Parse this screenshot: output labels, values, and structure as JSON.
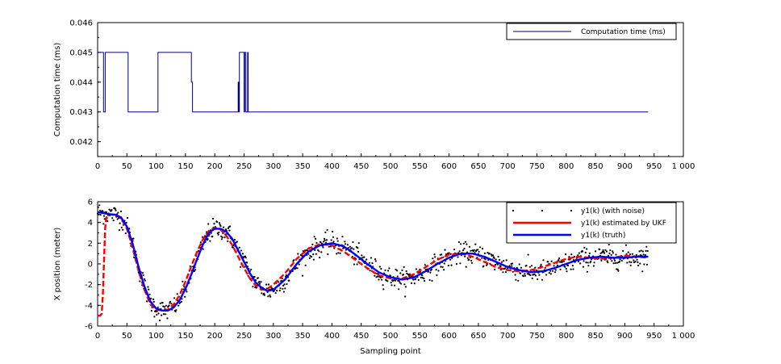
{
  "chart_data": [
    {
      "type": "line",
      "title": "",
      "xlabel": "",
      "ylabel": "Computation time (ms)",
      "xlim": [
        0,
        1000
      ],
      "ylim": [
        0.0415,
        0.046
      ],
      "xticks": [
        "0",
        "50",
        "100",
        "150",
        "200",
        "250",
        "300",
        "350",
        "400",
        "450",
        "500",
        "550",
        "600",
        "650",
        "700",
        "750",
        "800",
        "850",
        "900",
        "950",
        "1 000"
      ],
      "yticks": [
        "0.042",
        "0.043",
        "0.044",
        "0.045",
        "0.046"
      ],
      "grid": false,
      "legend_position": "top-right",
      "series": [
        {
          "name": "Computation time (ms)",
          "color": "#000080",
          "x": [
            0,
            10,
            10,
            13,
            13,
            52,
            52,
            103,
            103,
            160,
            160,
            162,
            162,
            240,
            240,
            241,
            241,
            242,
            242,
            250,
            250,
            251,
            251,
            253,
            253,
            256,
            256,
            257,
            257,
            258,
            258,
            940
          ],
          "y": [
            0.045,
            0.045,
            0.043,
            0.043,
            0.045,
            0.045,
            0.043,
            0.043,
            0.045,
            0.045,
            0.044,
            0.044,
            0.043,
            0.043,
            0.044,
            0.044,
            0.043,
            0.043,
            0.045,
            0.045,
            0.043,
            0.043,
            0.045,
            0.045,
            0.043,
            0.043,
            0.045,
            0.045,
            0.043,
            0.043,
            0.043,
            0.043
          ]
        }
      ]
    },
    {
      "type": "line",
      "title": "",
      "xlabel": "Sampling point",
      "ylabel": "X position (meter)",
      "xlim": [
        0,
        1000
      ],
      "ylim": [
        -6,
        6
      ],
      "xticks": [
        "0",
        "50",
        "100",
        "150",
        "200",
        "250",
        "300",
        "350",
        "400",
        "450",
        "500",
        "550",
        "600",
        "650",
        "700",
        "750",
        "800",
        "850",
        "900",
        "950",
        "1 000"
      ],
      "yticks": [
        "-6",
        "-4",
        "-2",
        "0",
        "2",
        "4",
        "6"
      ],
      "grid": false,
      "legend_position": "top-right",
      "series": [
        {
          "name": "y1(k) (with noise)",
          "style": "points",
          "color": "#000000",
          "x_range": [
            0,
            939
          ],
          "noise_std": 0.5,
          "count": 940
        },
        {
          "name": "y1(k) estimated by UKF",
          "color": "#ff0000",
          "x": [
            0,
            4,
            7,
            9,
            11,
            13,
            15,
            18,
            22,
            25,
            30,
            35,
            40,
            50,
            60,
            70,
            80,
            90,
            100,
            110,
            120,
            130,
            140,
            150,
            160,
            170,
            180,
            190,
            200,
            210,
            220,
            230,
            240,
            250,
            260,
            270,
            280,
            290,
            300,
            320,
            340,
            360,
            380,
            400,
            420,
            440,
            460,
            480,
            500,
            520,
            540,
            560,
            580,
            600,
            620,
            640,
            660,
            680,
            700,
            720,
            740,
            760,
            780,
            800,
            820,
            840,
            860,
            880,
            900,
            920,
            940
          ],
          "y": [
            -5.0,
            -5.0,
            -4.8,
            -3.0,
            0.5,
            3.5,
            4.5,
            4.8,
            4.8,
            4.75,
            4.7,
            4.6,
            4.4,
            3.4,
            1.5,
            -0.7,
            -2.5,
            -3.9,
            -4.4,
            -4.5,
            -4.4,
            -3.9,
            -3.0,
            -1.7,
            -0.2,
            1.2,
            2.4,
            3.2,
            3.5,
            3.3,
            2.7,
            1.8,
            0.7,
            -0.4,
            -1.4,
            -2.1,
            -2.5,
            -2.4,
            -2.0,
            -0.9,
            0.5,
            1.5,
            1.9,
            1.8,
            1.2,
            0.4,
            -0.4,
            -1.1,
            -1.4,
            -1.4,
            -1.0,
            -0.3,
            0.4,
            0.9,
            1.0,
            0.7,
            0.2,
            -0.3,
            -0.6,
            -0.7,
            -0.6,
            -0.3,
            0.1,
            0.5,
            0.7,
            0.6,
            0.5,
            0.6,
            0.8,
            0.7,
            0.6
          ]
        },
        {
          "name": "y1(k) (truth)",
          "color": "#0000ff",
          "x": [
            0,
            10,
            20,
            30,
            40,
            50,
            60,
            70,
            80,
            90,
            100,
            110,
            120,
            130,
            140,
            150,
            160,
            170,
            180,
            190,
            200,
            210,
            220,
            230,
            240,
            250,
            260,
            270,
            280,
            290,
            300,
            320,
            340,
            360,
            380,
            400,
            420,
            440,
            460,
            480,
            500,
            520,
            540,
            560,
            580,
            600,
            620,
            640,
            660,
            680,
            700,
            720,
            740,
            760,
            780,
            800,
            820,
            840,
            860,
            880,
            900,
            920,
            940
          ],
          "y": [
            5.0,
            4.9,
            4.8,
            4.75,
            4.5,
            3.6,
            1.9,
            -0.3,
            -2.2,
            -3.6,
            -4.3,
            -4.5,
            -4.5,
            -4.2,
            -3.5,
            -2.4,
            -1.0,
            0.5,
            1.9,
            3.0,
            3.4,
            3.4,
            3.1,
            2.4,
            1.3,
            0.2,
            -0.9,
            -1.8,
            -2.3,
            -2.6,
            -2.5,
            -1.5,
            0.0,
            1.2,
            1.8,
            2.0,
            1.7,
            0.9,
            0.0,
            -0.8,
            -1.3,
            -1.5,
            -1.3,
            -0.7,
            0.0,
            0.6,
            1.0,
            1.0,
            0.7,
            0.2,
            -0.3,
            -0.6,
            -0.8,
            -0.7,
            -0.4,
            0.0,
            0.4,
            0.6,
            0.7,
            0.6,
            0.6,
            0.7,
            0.7
          ]
        }
      ]
    }
  ],
  "ui": {
    "axes_color": "#000000",
    "axes_background": "#ffffff"
  }
}
